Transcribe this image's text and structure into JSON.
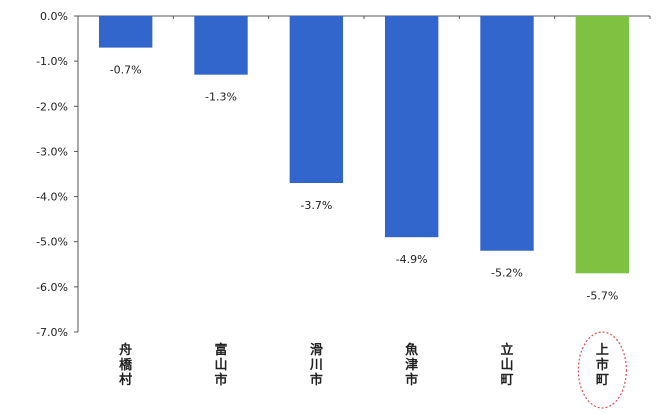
{
  "chart_data": {
    "type": "bar",
    "categories": [
      "舟橋村",
      "富山市",
      "滑川市",
      "魚津市",
      "立山町",
      "上市町"
    ],
    "values": [
      -0.7,
      -1.3,
      -3.7,
      -4.9,
      -5.2,
      -5.7
    ],
    "data_labels": [
      "-0.7%",
      "-1.3%",
      "-3.7%",
      "-4.9%",
      "-5.2%",
      "-5.7%"
    ],
    "ylim": [
      -7.0,
      0.0
    ],
    "y_ticks": [
      0.0,
      -1.0,
      -2.0,
      -3.0,
      -4.0,
      -5.0,
      -6.0,
      -7.0
    ],
    "y_tick_labels": [
      "0.0%",
      "-1.0%",
      "-2.0%",
      "-3.0%",
      "-4.0%",
      "-5.0%",
      "-6.0%",
      "-7.0%"
    ],
    "colors": [
      "#3366cc",
      "#3366cc",
      "#3366cc",
      "#3366cc",
      "#3366cc",
      "#7fc241"
    ],
    "highlight_color": "#7fc241",
    "bar_color": "#3366cc",
    "highlight_marker_color": "#e05050",
    "grid": false,
    "legend": "none"
  }
}
